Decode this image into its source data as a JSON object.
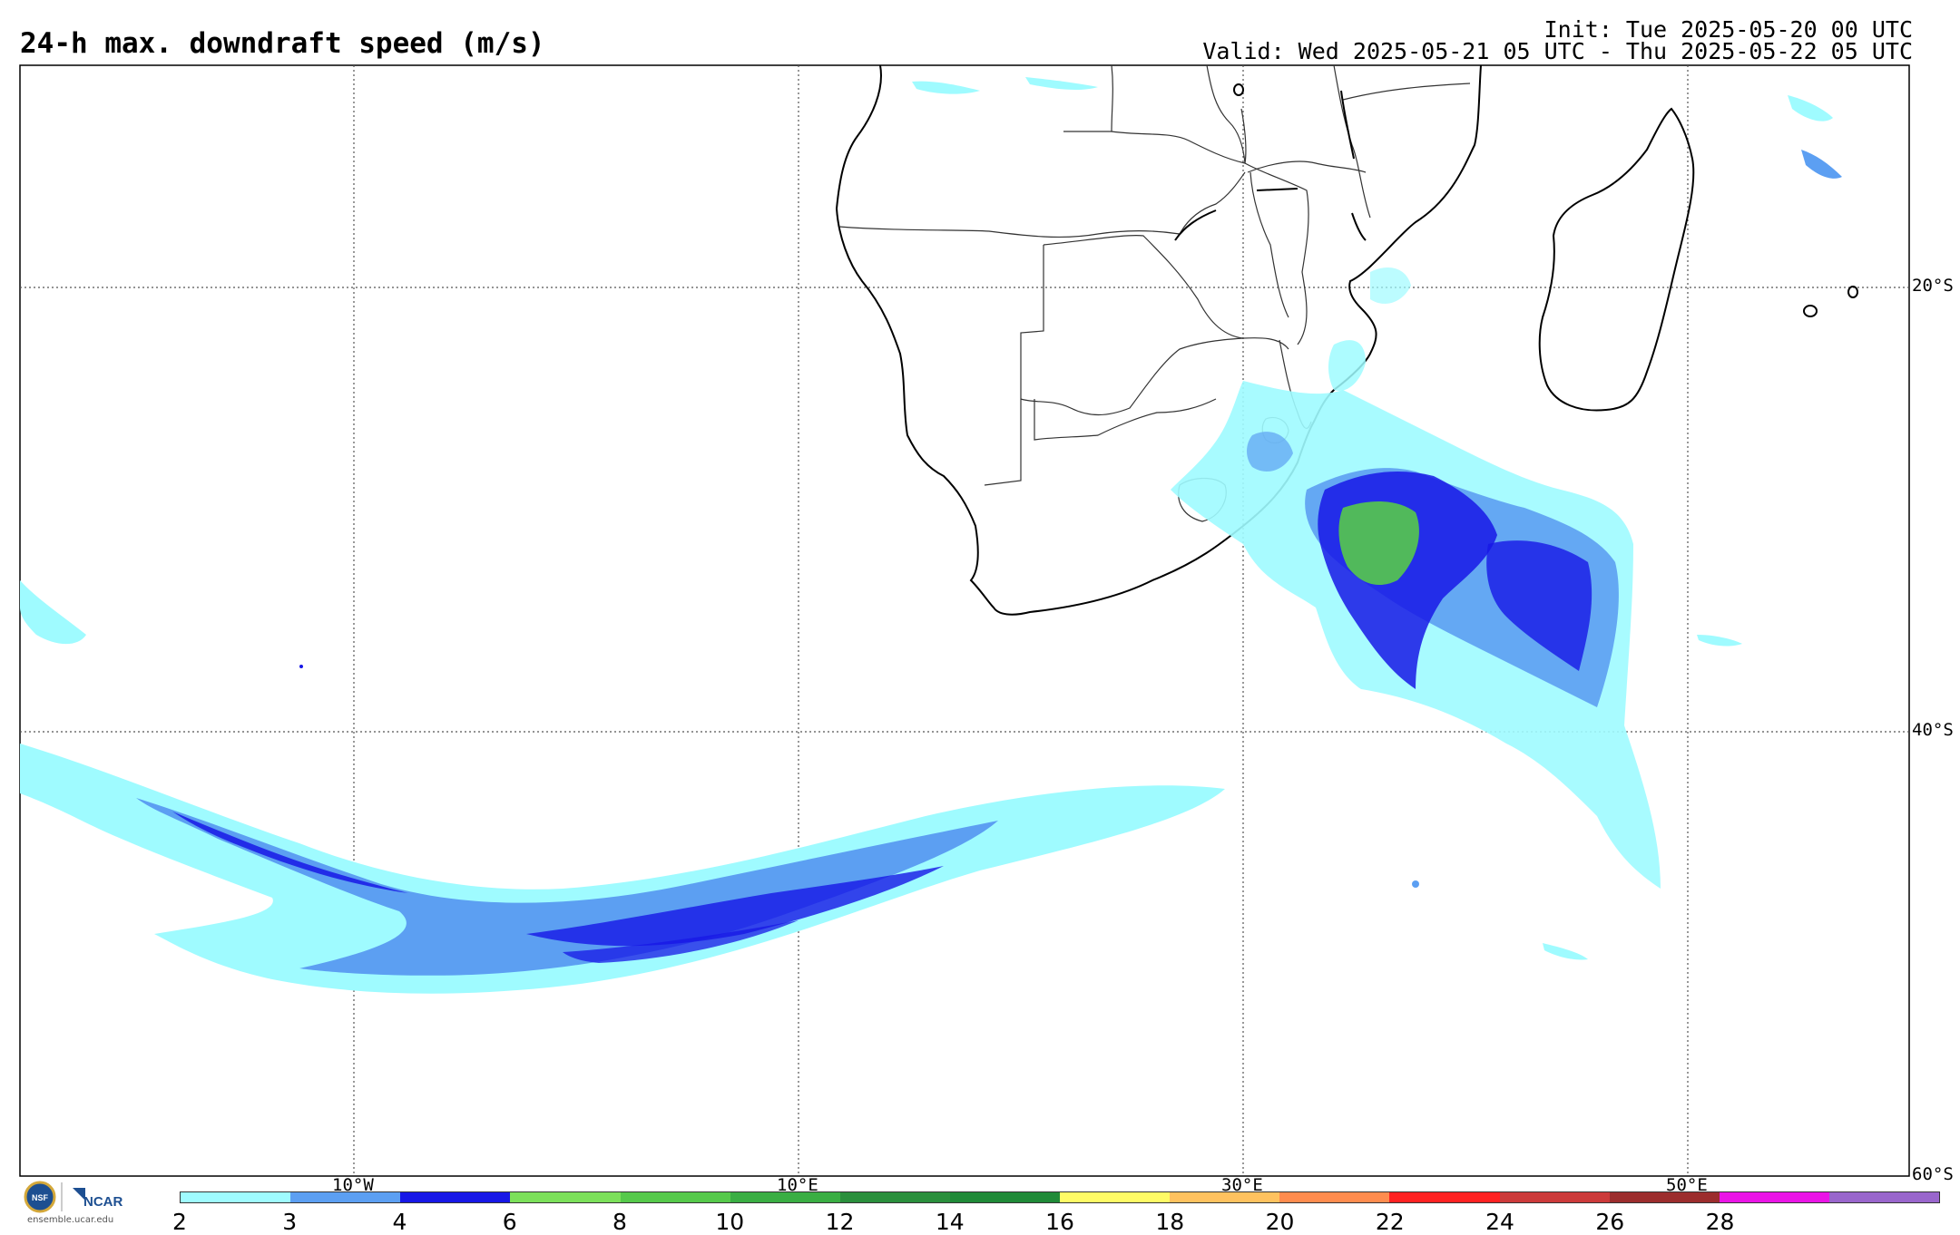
{
  "header": {
    "title": "24-h max. downdraft speed (m/s)",
    "init": "Init: Tue 2025-05-20 00 UTC",
    "valid": "Valid: Wed 2025-05-21 05 UTC - Thu 2025-05-22 05 UTC"
  },
  "axes": {
    "lat_labels": [
      "20°S",
      "40°S",
      "60°S"
    ],
    "lon_labels": [
      "10°W",
      "10°E",
      "30°E",
      "50°E"
    ]
  },
  "colorbar": {
    "ticks": [
      "2",
      "3",
      "4",
      "6",
      "8",
      "10",
      "12",
      "14",
      "16",
      "18",
      "20",
      "22",
      "24",
      "26",
      "28"
    ],
    "colors": [
      "#9ffbff",
      "#5c9ff2",
      "#1717e6",
      "#7ce05a",
      "#56c94b",
      "#3aae43",
      "#2a8f3c",
      "#208a38",
      "#fffb66",
      "#ffc25f",
      "#ff8c4e",
      "#ff2121",
      "#cc3a3a",
      "#9c2d2d",
      "#ea14e6",
      "#9966cc"
    ]
  },
  "branding": {
    "logo_org": "NCAR",
    "logo_nsf": "NSF",
    "site": "ensemble.ucar.edu"
  }
}
